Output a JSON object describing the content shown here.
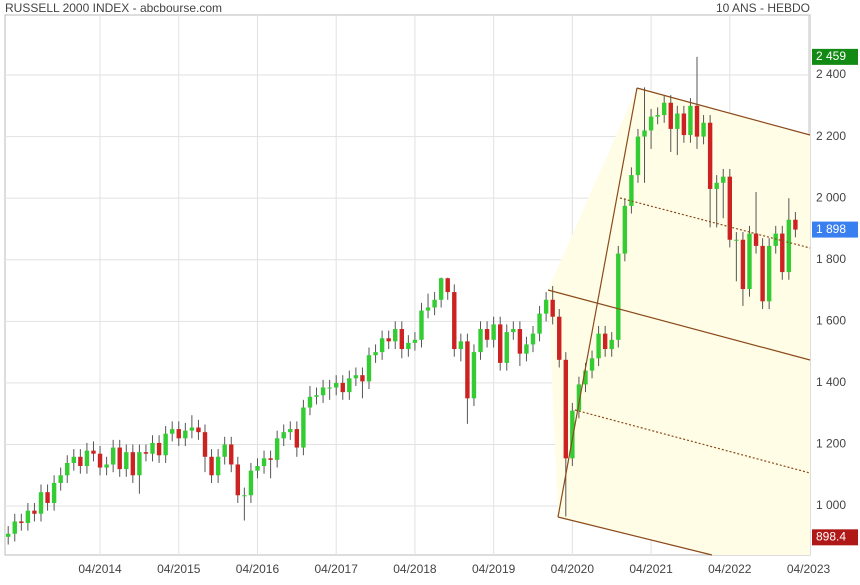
{
  "chart_data": {
    "type": "candlestick",
    "title": "RUSSELL 2000 INDEX - abcbourse.com",
    "subtitle": "10 ANS - HEBDO",
    "categories": [
      null,
      null,
      null,
      null,
      null,
      null,
      null,
      null,
      null,
      null,
      null,
      null,
      null,
      null,
      "04/2014",
      null,
      null,
      null,
      null,
      null,
      null,
      null,
      null,
      null,
      null,
      null,
      "04/2015",
      null,
      null,
      null,
      null,
      null,
      null,
      null,
      null,
      null,
      null,
      null,
      "04/2016",
      null,
      null,
      null,
      null,
      null,
      null,
      null,
      null,
      null,
      null,
      null,
      "04/2017",
      null,
      null,
      null,
      null,
      null,
      null,
      null,
      null,
      null,
      null,
      null,
      "04/2018",
      null,
      null,
      null,
      null,
      null,
      null,
      null,
      null,
      null,
      null,
      null,
      "04/2019",
      null,
      null,
      null,
      null,
      null,
      null,
      null,
      null,
      null,
      null,
      null,
      "04/2020",
      null,
      null,
      null,
      null,
      null,
      null,
      null,
      null,
      null,
      null,
      null,
      "04/2021",
      null,
      null,
      null,
      null,
      null,
      null,
      null,
      null,
      null,
      null,
      null,
      "04/2022",
      null,
      null,
      null,
      null,
      null,
      null,
      null,
      null,
      null,
      null,
      null,
      "04/2023"
    ],
    "open": [
      900,
      910,
      950,
      945,
      985,
      975,
      1045,
      1010,
      1075,
      1100,
      1140,
      1160,
      1130,
      1180,
      1170,
      1125,
      1135,
      1190,
      1120,
      1175,
      1100,
      1175,
      1170,
      1205,
      1165,
      1235,
      1250,
      1220,
      1245,
      1255,
      1240,
      1160,
      1100,
      1160,
      1200,
      1135,
      1035,
      1035,
      1115,
      1130,
      1155,
      1150,
      1220,
      1240,
      1250,
      1190,
      1320,
      1355,
      1360,
      1385,
      1385,
      1400,
      1370,
      1415,
      1425,
      1405,
      1490,
      1500,
      1545,
      1535,
      1575,
      1510,
      1530,
      1540,
      1635,
      1645,
      1670,
      1740,
      1695,
      1510,
      1535,
      1350,
      1500,
      1575,
      1540,
      1590,
      1465,
      1565,
      1575,
      1495,
      1525,
      1560,
      1625,
      1670,
      1615,
      1475,
      1155,
      1310,
      1395,
      1440,
      1480,
      1560,
      1510,
      1540,
      1820,
      1975,
      2075,
      2200,
      2220,
      2265,
      2270,
      2310,
      2225,
      2275,
      2205,
      2300,
      2200,
      2245,
      2030,
      2050,
      2070,
      1865,
      1865,
      1705,
      1885,
      1845,
      1665,
      1845,
      1885,
      1760,
      1930,
      null,
      null
    ],
    "high": [
      935,
      975,
      975,
      1010,
      1010,
      1070,
      1070,
      1100,
      1125,
      1165,
      1185,
      1185,
      1205,
      1210,
      1195,
      1160,
      1215,
      1215,
      1200,
      1200,
      1200,
      1200,
      1230,
      1230,
      1260,
      1275,
      1275,
      1270,
      1295,
      1280,
      1265,
      1185,
      1185,
      1225,
      1225,
      1160,
      1060,
      1140,
      1155,
      1180,
      1180,
      1245,
      1265,
      1275,
      1275,
      1345,
      1390,
      1385,
      1410,
      1410,
      1425,
      1425,
      1440,
      1450,
      1450,
      1515,
      1525,
      1570,
      1570,
      1600,
      1600,
      1555,
      1565,
      1660,
      1690,
      1695,
      1742,
      1742,
      1720,
      1560,
      1560,
      1525,
      1600,
      1600,
      1615,
      1615,
      1590,
      1600,
      1600,
      1550,
      1585,
      1650,
      1695,
      1715,
      1640,
      1500,
      1335,
      1420,
      1465,
      1505,
      1585,
      1585,
      1565,
      1845,
      2000,
      2100,
      2225,
      2360,
      2290,
      2295,
      2335,
      2335,
      2300,
      2300,
      2325,
      2459,
      2270,
      2270,
      2075,
      2095,
      2095,
      1890,
      1890,
      1910,
      2020,
      1870,
      1870,
      1910,
      1910,
      2000,
      1955,
      null,
      null
    ],
    "low": [
      875,
      885,
      920,
      920,
      950,
      950,
      985,
      985,
      1050,
      1075,
      1115,
      1105,
      1105,
      1145,
      1100,
      1100,
      1110,
      1095,
      1095,
      1075,
      1040,
      1145,
      1145,
      1140,
      1140,
      1210,
      1195,
      1195,
      1220,
      1215,
      1110,
      1075,
      1075,
      1135,
      1110,
      1010,
      953,
      1010,
      1090,
      1105,
      1090,
      1125,
      1195,
      1215,
      1160,
      1165,
      1295,
      1330,
      1335,
      1345,
      1360,
      1345,
      1345,
      1390,
      1350,
      1380,
      1465,
      1475,
      1510,
      1510,
      1480,
      1485,
      1505,
      1515,
      1610,
      1620,
      1645,
      1670,
      1485,
      1470,
      1267,
      1325,
      1475,
      1515,
      1515,
      1440,
      1440,
      1540,
      1455,
      1470,
      1500,
      1535,
      1600,
      1590,
      1450,
      966,
      1130,
      1285,
      1370,
      1415,
      1455,
      1485,
      1485,
      1515,
      1795,
      1950,
      2050,
      2050,
      2160,
      2240,
      2245,
      2150,
      2140,
      2180,
      2180,
      2160,
      2175,
      1905,
      1905,
      1935,
      1840,
      1730,
      1650,
      1680,
      1820,
      1640,
      1640,
      1820,
      1735,
      1735,
      1873,
      null,
      null
    ],
    "close": [
      910,
      950,
      945,
      985,
      975,
      1045,
      1010,
      1075,
      1100,
      1140,
      1160,
      1130,
      1180,
      1170,
      1125,
      1135,
      1190,
      1120,
      1175,
      1100,
      1175,
      1170,
      1205,
      1165,
      1235,
      1250,
      1220,
      1245,
      1255,
      1240,
      1160,
      1100,
      1160,
      1200,
      1135,
      1035,
      1035,
      1115,
      1130,
      1155,
      1150,
      1220,
      1240,
      1250,
      1190,
      1320,
      1355,
      1360,
      1385,
      1385,
      1400,
      1370,
      1415,
      1425,
      1405,
      1490,
      1500,
      1545,
      1535,
      1575,
      1510,
      1530,
      1540,
      1635,
      1645,
      1670,
      1740,
      1695,
      1510,
      1535,
      1350,
      1500,
      1575,
      1540,
      1590,
      1465,
      1565,
      1575,
      1495,
      1525,
      1560,
      1625,
      1670,
      1615,
      1475,
      1155,
      1310,
      1395,
      1440,
      1480,
      1560,
      1510,
      1540,
      1820,
      1975,
      2075,
      2200,
      2220,
      2265,
      2270,
      2310,
      2225,
      2275,
      2205,
      2300,
      2200,
      2245,
      2030,
      2050,
      2070,
      1865,
      1865,
      1705,
      1885,
      1845,
      1665,
      1845,
      1885,
      1760,
      1930,
      1898,
      null,
      null
    ],
    "up_color": "#33cc33",
    "down_color": "#cc2222",
    "ylim": [
      841,
      2595
    ],
    "yticks": [
      {
        "value": 1000,
        "label": "1 000"
      },
      {
        "value": 1200,
        "label": "1 200"
      },
      {
        "value": 1400,
        "label": "1 400"
      },
      {
        "value": 1600,
        "label": "1 600"
      },
      {
        "value": 1800,
        "label": "1 800"
      },
      {
        "value": 2000,
        "label": "2 000"
      },
      {
        "value": 2200,
        "label": "2 200"
      },
      {
        "value": 2400,
        "label": "2 400"
      }
    ],
    "grid": true,
    "markers": [
      {
        "value": 2459,
        "label": "2 459",
        "color": "#138a13"
      },
      {
        "value": 1898,
        "label": "1 898",
        "color": "#3a7ff0"
      },
      {
        "value": 898.4,
        "label": "898.4",
        "color": "#b01818"
      }
    ]
  }
}
